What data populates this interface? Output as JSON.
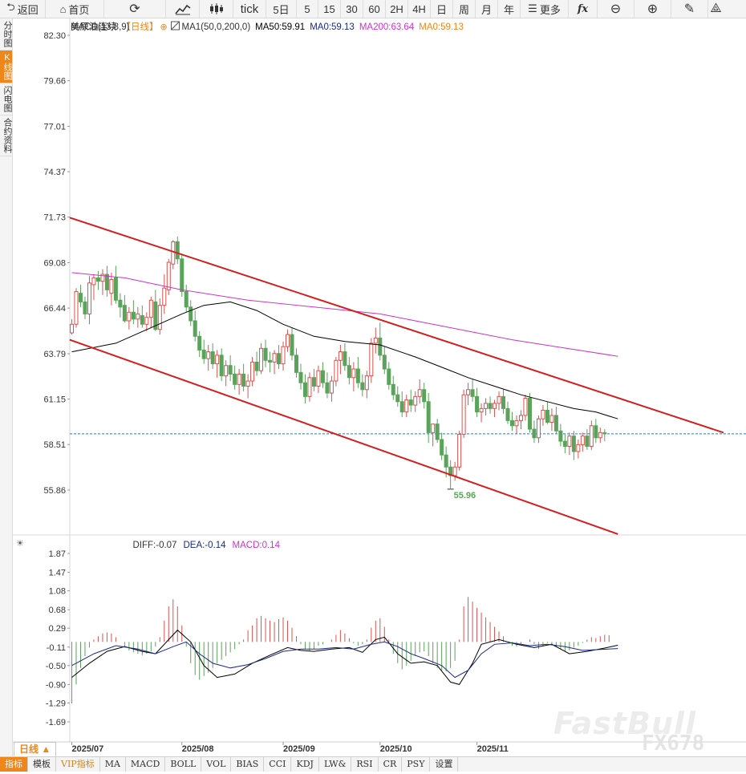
{
  "toolbar": {
    "back": "返回",
    "home": "首页",
    "tick": "tick",
    "periods": [
      "5日",
      "5",
      "15",
      "30",
      "60",
      "2H",
      "4H",
      "日",
      "周",
      "月",
      "年"
    ],
    "more": "更多",
    "fx": "fx"
  },
  "side_tabs": [
    "分时图",
    "K线图",
    "闪电图",
    "合约资料"
  ],
  "side_tab_active": "K线图",
  "main_legend": {
    "symbol": "美原油连续",
    "period": "【日线】",
    "ma1": "MA1(50,0,200,0)",
    "ma50": "MA50:59.91",
    "ma0": "MA0:59.13",
    "ma200": "MA200:63.64",
    "ma0b": "MA0:59.13"
  },
  "macd_legend": {
    "name": "MACD(13,8,9)",
    "diff": "DIFF:-0.07",
    "dea": "DEA:-0.14",
    "macd": "MACD:0.14"
  },
  "period_button": "日线 ▲",
  "indicator_tabs": [
    "指标",
    "模板",
    "VIP指标",
    "MA",
    "MACD",
    "BOLL",
    "VOL",
    "BIAS",
    "CCI",
    "KDJ",
    "LW&",
    "RSI",
    "CR",
    "PSY",
    "设置"
  ],
  "watermark": "FastBull",
  "watermark_code": "FX678",
  "colors": {
    "up": "#d9534f",
    "down": "#5aa35a",
    "channel": "#d41e1e",
    "ma50": "#000000",
    "ma200": "#cc33cc",
    "last_price": "#2a7ab8",
    "dea": "#1a2a8a",
    "accent": "#f08519"
  },
  "chart_data": [
    {
      "type": "candlestick",
      "title": "美原油连续 日线",
      "y_ticks": [
        "82.30",
        "79.66",
        "77.01",
        "74.37",
        "71.73",
        "69.08",
        "66.44",
        "63.79",
        "61.15",
        "58.51",
        "55.86"
      ],
      "ylim": [
        54.2,
        82.3
      ],
      "x_labels": [
        "2025/07",
        "2025/08",
        "2025/09",
        "2025/10",
        "2025/11"
      ],
      "last_price": 59.13,
      "low_annotation": "55.96",
      "candles": [
        [
          65.0,
          65.8,
          64.9,
          65.5
        ],
        [
          65.5,
          67.6,
          65.3,
          67.4
        ],
        [
          67.3,
          67.8,
          66.5,
          66.8
        ],
        [
          66.8,
          67.1,
          65.8,
          66.1
        ],
        [
          66.1,
          68.3,
          65.5,
          67.9
        ],
        [
          67.8,
          68.4,
          66.9,
          68.2
        ],
        [
          68.2,
          68.6,
          67.5,
          68.0
        ],
        [
          68.0,
          68.7,
          67.2,
          68.4
        ],
        [
          68.4,
          68.9,
          67.1,
          67.5
        ],
        [
          67.3,
          68.5,
          66.6,
          68.1
        ],
        [
          68.2,
          68.9,
          66.7,
          66.9
        ],
        [
          66.9,
          67.3,
          65.9,
          66.5
        ],
        [
          66.6,
          67.2,
          65.6,
          65.7
        ],
        [
          65.7,
          66.5,
          65.2,
          66.2
        ],
        [
          66.2,
          66.9,
          65.5,
          65.8
        ],
        [
          65.8,
          66.5,
          65.3,
          66.1
        ],
        [
          66.0,
          66.6,
          65.3,
          65.5
        ],
        [
          65.5,
          66.2,
          65.1,
          65.9
        ],
        [
          65.9,
          67.1,
          65.3,
          66.9
        ],
        [
          66.8,
          67.5,
          65.1,
          65.2
        ],
        [
          65.2,
          67.0,
          64.9,
          66.6
        ],
        [
          66.6,
          68.4,
          66.1,
          67.6
        ],
        [
          67.5,
          69.3,
          67.2,
          69.1
        ],
        [
          69.0,
          70.4,
          68.7,
          70.3
        ],
        [
          70.3,
          70.6,
          69.0,
          69.3
        ],
        [
          69.3,
          69.6,
          67.1,
          67.4
        ],
        [
          67.4,
          67.8,
          66.2,
          66.5
        ],
        [
          66.5,
          66.9,
          65.4,
          65.7
        ],
        [
          65.7,
          66.3,
          64.5,
          64.8
        ],
        [
          64.8,
          65.1,
          63.6,
          64.0
        ],
        [
          64.0,
          64.6,
          63.2,
          63.5
        ],
        [
          63.5,
          64.3,
          62.8,
          63.9
        ],
        [
          63.9,
          64.4,
          62.9,
          63.2
        ],
        [
          63.2,
          64.0,
          62.4,
          63.7
        ],
        [
          63.7,
          64.1,
          62.2,
          62.5
        ],
        [
          62.5,
          63.4,
          61.9,
          63.1
        ],
        [
          63.1,
          63.7,
          62.2,
          62.6
        ],
        [
          62.6,
          63.1,
          61.7,
          62.0
        ],
        [
          62.0,
          62.9,
          61.4,
          62.6
        ],
        [
          62.6,
          63.2,
          61.6,
          61.9
        ],
        [
          61.9,
          62.6,
          61.2,
          62.2
        ],
        [
          62.2,
          63.6,
          61.9,
          63.3
        ],
        [
          63.3,
          63.9,
          62.5,
          62.8
        ],
        [
          62.8,
          64.4,
          62.6,
          64.1
        ],
        [
          64.1,
          64.6,
          63.0,
          63.4
        ],
        [
          63.4,
          63.9,
          62.7,
          63.3
        ],
        [
          63.3,
          64.0,
          62.6,
          63.8
        ],
        [
          63.8,
          64.3,
          62.9,
          63.2
        ],
        [
          63.2,
          64.5,
          62.8,
          64.2
        ],
        [
          64.2,
          65.2,
          63.9,
          64.9
        ],
        [
          64.9,
          65.3,
          63.4,
          63.7
        ],
        [
          63.7,
          64.1,
          62.4,
          62.7
        ],
        [
          62.7,
          63.2,
          61.7,
          62.1
        ],
        [
          62.1,
          62.6,
          60.9,
          61.3
        ],
        [
          61.3,
          62.7,
          61.0,
          62.4
        ],
        [
          62.4,
          62.9,
          61.6,
          61.9
        ],
        [
          61.9,
          63.1,
          61.5,
          62.8
        ],
        [
          62.8,
          63.3,
          61.8,
          62.1
        ],
        [
          62.1,
          62.7,
          61.2,
          61.5
        ],
        [
          61.5,
          62.5,
          61.0,
          62.2
        ],
        [
          62.2,
          63.6,
          61.9,
          63.4
        ],
        [
          63.4,
          64.3,
          62.6,
          63.9
        ],
        [
          63.9,
          64.4,
          62.8,
          63.1
        ],
        [
          63.1,
          63.6,
          62.0,
          62.4
        ],
        [
          62.4,
          63.3,
          61.6,
          62.9
        ],
        [
          62.9,
          63.6,
          61.8,
          62.1
        ],
        [
          62.1,
          62.6,
          61.3,
          61.7
        ],
        [
          61.7,
          62.8,
          61.2,
          62.5
        ],
        [
          62.5,
          64.7,
          62.1,
          64.4
        ],
        [
          64.4,
          65.3,
          63.8,
          64.7
        ],
        [
          64.7,
          65.6,
          63.4,
          63.7
        ],
        [
          63.7,
          64.2,
          62.6,
          62.9
        ],
        [
          62.9,
          63.3,
          61.7,
          62.0
        ],
        [
          62.0,
          62.5,
          61.1,
          61.4
        ],
        [
          61.4,
          61.9,
          60.7,
          61.0
        ],
        [
          61.0,
          61.6,
          60.1,
          60.4
        ],
        [
          60.4,
          61.4,
          60.1,
          61.1
        ],
        [
          61.1,
          61.7,
          60.4,
          60.8
        ],
        [
          60.8,
          61.6,
          60.4,
          61.3
        ],
        [
          61.3,
          62.3,
          60.9,
          61.7
        ],
        [
          61.7,
          62.1,
          60.6,
          61.0
        ],
        [
          61.0,
          61.5,
          58.6,
          59.2
        ],
        [
          59.2,
          59.7,
          58.4,
          59.7
        ],
        [
          59.7,
          60.0,
          58.6,
          58.8
        ],
        [
          58.8,
          59.2,
          57.6,
          57.9
        ],
        [
          57.9,
          58.4,
          56.6,
          57.2
        ],
        [
          57.2,
          57.6,
          55.96,
          56.7
        ],
        [
          56.7,
          57.5,
          56.4,
          57.2
        ],
        [
          57.2,
          59.3,
          57.0,
          59.1
        ],
        [
          59.1,
          61.7,
          58.9,
          61.4
        ],
        [
          61.4,
          62.1,
          60.8,
          61.7
        ],
        [
          61.7,
          62.3,
          61.0,
          61.3
        ],
        [
          61.3,
          61.8,
          60.1,
          60.4
        ],
        [
          60.4,
          60.9,
          59.8,
          60.6
        ],
        [
          60.6,
          61.2,
          60.2,
          60.9
        ],
        [
          60.9,
          61.3,
          60.3,
          60.6
        ],
        [
          60.6,
          61.1,
          60.1,
          60.9
        ],
        [
          60.9,
          61.6,
          60.5,
          61.3
        ],
        [
          61.3,
          61.7,
          60.3,
          60.6
        ],
        [
          60.6,
          61.0,
          59.7,
          59.9
        ],
        [
          59.9,
          60.4,
          59.3,
          59.6
        ],
        [
          59.6,
          60.2,
          59.1,
          59.9
        ],
        [
          59.9,
          60.5,
          59.4,
          60.2
        ],
        [
          60.2,
          61.4,
          59.9,
          61.2
        ],
        [
          61.2,
          61.5,
          59.2,
          59.4
        ],
        [
          59.4,
          59.9,
          58.6,
          58.9
        ],
        [
          58.9,
          60.2,
          58.6,
          60.0
        ],
        [
          60.0,
          60.8,
          59.6,
          60.5
        ],
        [
          60.5,
          61.0,
          59.7,
          59.8
        ],
        [
          59.8,
          60.6,
          59.3,
          60.2
        ],
        [
          60.2,
          60.7,
          59.1,
          59.3
        ],
        [
          59.3,
          59.7,
          58.4,
          58.7
        ],
        [
          58.7,
          59.1,
          58.0,
          58.4
        ],
        [
          58.4,
          59.2,
          57.9,
          59.0
        ],
        [
          59.0,
          59.3,
          57.6,
          58.1
        ],
        [
          58.1,
          58.8,
          57.7,
          58.5
        ],
        [
          58.5,
          59.2,
          58.1,
          59.0
        ],
        [
          59.0,
          59.4,
          58.2,
          58.4
        ],
        [
          58.4,
          59.9,
          58.2,
          59.6
        ],
        [
          59.6,
          60.0,
          58.6,
          58.9
        ],
        [
          58.9,
          59.5,
          58.6,
          59.2
        ],
        [
          59.2,
          59.4,
          58.7,
          59.13
        ]
      ],
      "ma50": [
        [
          0,
          63.9
        ],
        [
          10,
          64.4
        ],
        [
          18,
          65.3
        ],
        [
          25,
          66.1
        ],
        [
          30,
          66.6
        ],
        [
          36,
          66.8
        ],
        [
          42,
          66.3
        ],
        [
          48,
          65.5
        ],
        [
          55,
          64.8
        ],
        [
          62,
          64.5
        ],
        [
          70,
          64.3
        ],
        [
          78,
          63.6
        ],
        [
          85,
          62.9
        ],
        [
          90,
          62.4
        ],
        [
          96,
          61.9
        ],
        [
          102,
          61.4
        ],
        [
          108,
          61.0
        ],
        [
          114,
          60.6
        ],
        [
          119,
          60.4
        ],
        [
          124,
          60.0
        ]
      ],
      "ma200": [
        [
          0,
          68.5
        ],
        [
          12,
          68.2
        ],
        [
          25,
          67.5
        ],
        [
          40,
          66.9
        ],
        [
          55,
          66.5
        ],
        [
          70,
          66.1
        ],
        [
          80,
          65.6
        ],
        [
          90,
          65.1
        ],
        [
          100,
          64.6
        ],
        [
          110,
          64.2
        ],
        [
          124,
          63.64
        ]
      ],
      "channel_upper": [
        [
          -0.5,
          71.7
        ],
        [
          148,
          59.2
        ]
      ],
      "channel_lower": [
        [
          -0.5,
          64.6
        ],
        [
          124,
          53.3
        ]
      ]
    },
    {
      "type": "macd",
      "y_ticks": [
        "1.87",
        "1.47",
        "1.08",
        "0.68",
        "0.29",
        "-0.11",
        "-0.50",
        "-0.90",
        "-1.29",
        "-1.69"
      ],
      "ylim": [
        -1.92,
        1.95
      ],
      "histogram": [
        -1.3,
        -0.9,
        -0.55,
        -0.3,
        -0.12,
        0.05,
        0.12,
        0.18,
        0.2,
        0.18,
        0.1,
        0.0,
        -0.1,
        -0.18,
        -0.22,
        -0.25,
        -0.28,
        -0.25,
        -0.2,
        -0.1,
        0.1,
        0.45,
        0.75,
        0.9,
        0.75,
        0.35,
        -0.1,
        -0.45,
        -0.7,
        -0.8,
        -0.72,
        -0.65,
        -0.55,
        -0.45,
        -0.38,
        -0.3,
        -0.22,
        -0.15,
        -0.05,
        0.05,
        0.25,
        0.35,
        0.5,
        0.55,
        0.5,
        0.45,
        0.42,
        0.48,
        0.52,
        0.45,
        0.3,
        0.12,
        -0.05,
        -0.15,
        -0.2,
        -0.15,
        -0.08,
        -0.05,
        0.0,
        0.05,
        0.15,
        0.25,
        0.18,
        0.08,
        -0.03,
        -0.08,
        -0.05,
        0.05,
        0.3,
        0.45,
        0.5,
        0.32,
        0.05,
        -0.25,
        -0.45,
        -0.58,
        -0.5,
        -0.4,
        -0.3,
        -0.22,
        -0.2,
        -0.3,
        -0.45,
        -0.55,
        -0.6,
        -0.62,
        -0.55,
        -0.4,
        0.05,
        0.75,
        0.95,
        0.85,
        0.72,
        0.62,
        0.52,
        0.42,
        0.32,
        0.22,
        0.12,
        0.0,
        -0.08,
        -0.1,
        -0.05,
        0.0,
        0.05,
        -0.05,
        -0.15,
        -0.08,
        -0.02,
        -0.05,
        -0.1,
        -0.15,
        -0.2,
        -0.18,
        -0.12,
        -0.08,
        -0.02,
        0.05,
        0.1,
        0.08,
        0.12,
        0.15,
        0.14
      ],
      "diff": [
        [
          0,
          -0.75
        ],
        [
          4,
          -0.45
        ],
        [
          8,
          -0.2
        ],
        [
          12,
          -0.1
        ],
        [
          16,
          -0.2
        ],
        [
          19,
          -0.25
        ],
        [
          22,
          0.05
        ],
        [
          24,
          0.25
        ],
        [
          27,
          0.0
        ],
        [
          30,
          -0.5
        ],
        [
          33,
          -0.75
        ],
        [
          37,
          -0.68
        ],
        [
          41,
          -0.45
        ],
        [
          45,
          -0.28
        ],
        [
          49,
          -0.12
        ],
        [
          52,
          -0.18
        ],
        [
          55,
          -0.2
        ],
        [
          59,
          -0.15
        ],
        [
          63,
          -0.12
        ],
        [
          66,
          -0.22
        ],
        [
          69,
          0.05
        ],
        [
          71,
          0.1
        ],
        [
          74,
          -0.25
        ],
        [
          77,
          -0.45
        ],
        [
          80,
          -0.42
        ],
        [
          83,
          -0.5
        ],
        [
          86,
          -0.85
        ],
        [
          88,
          -0.9
        ],
        [
          91,
          -0.45
        ],
        [
          93,
          -0.05
        ],
        [
          97,
          0.05
        ],
        [
          101,
          -0.05
        ],
        [
          105,
          -0.12
        ],
        [
          109,
          -0.05
        ],
        [
          113,
          -0.25
        ],
        [
          117,
          -0.2
        ],
        [
          121,
          -0.13
        ],
        [
          124,
          -0.07
        ]
      ],
      "dea": [
        [
          0,
          -0.5
        ],
        [
          5,
          -0.25
        ],
        [
          10,
          -0.08
        ],
        [
          15,
          -0.15
        ],
        [
          19,
          -0.25
        ],
        [
          23,
          -0.1
        ],
        [
          26,
          0.0
        ],
        [
          29,
          -0.25
        ],
        [
          32,
          -0.45
        ],
        [
          36,
          -0.55
        ],
        [
          40,
          -0.48
        ],
        [
          44,
          -0.35
        ],
        [
          48,
          -0.2
        ],
        [
          52,
          -0.15
        ],
        [
          56,
          -0.15
        ],
        [
          60,
          -0.12
        ],
        [
          64,
          -0.15
        ],
        [
          68,
          -0.05
        ],
        [
          71,
          0.0
        ],
        [
          74,
          -0.1
        ],
        [
          77,
          -0.25
        ],
        [
          80,
          -0.35
        ],
        [
          84,
          -0.5
        ],
        [
          87,
          -0.75
        ],
        [
          90,
          -0.6
        ],
        [
          93,
          -0.25
        ],
        [
          96,
          -0.05
        ],
        [
          100,
          -0.02
        ],
        [
          104,
          -0.08
        ],
        [
          108,
          -0.05
        ],
        [
          112,
          -0.1
        ],
        [
          116,
          -0.18
        ],
        [
          120,
          -0.16
        ],
        [
          124,
          -0.14
        ]
      ]
    }
  ]
}
